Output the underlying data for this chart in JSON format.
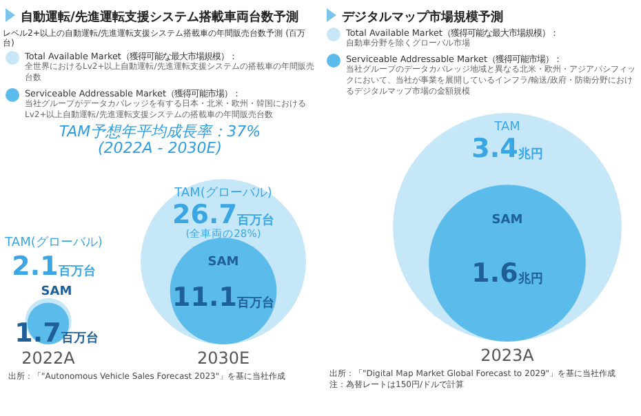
{
  "chart_data": [
    {
      "type": "other",
      "title": "自動運転/先進運転支援システム搭載車両台数予測",
      "subtitle": "レベル2+以上の自動運転/先進運転支援システム搭載車の年間販売台数予測 (百万台)",
      "categories": [
        "2022A",
        "2030E"
      ],
      "series": [
        {
          "name": "TAM(グローバル)",
          "color": "#c6e7f8",
          "values": [
            2.1,
            26.7
          ],
          "value_labels": [
            "2.1百万台",
            "26.7百万台"
          ]
        },
        {
          "name": "SAM",
          "color": "#5bbbeb",
          "values": [
            1.7,
            11.1
          ],
          "value_labels": [
            "1.7百万台",
            "11.1百万台"
          ]
        }
      ],
      "annotations": [
        "Total Available Market（獲得可能な最大市場規模）：",
        "全世界におけるLv2+以上自動運転/先進運転支援システムの搭載車の年間販売台数",
        "Serviceable Addressable Market（獲得可能市場）：",
        "当社グループがデータカバレッジを有する日本・北米・欧州・韓国におけるLv2+以上自動運転/先進運転支援システムの搭載車の年間販売台数",
        "TAM予想年平均成長率：37%\n(2022A - 2030E)",
        "出所：「\"Autonomous Vehicle Sales Forecast 2023\"」を基に当社作成",
        {
          "text": "(全車両の28%)",
          "x": "2030E"
        }
      ]
    },
    {
      "type": "other",
      "title": "デジタルマップ市場規模予測",
      "categories": [
        "2023A"
      ],
      "series": [
        {
          "name": "TAM",
          "color": "#c6e7f8",
          "values": [
            3.4
          ],
          "value_labels": [
            "3.4兆円"
          ]
        },
        {
          "name": "SAM",
          "color": "#5bbbeb",
          "values": [
            1.6
          ],
          "value_labels": [
            "1.6兆円"
          ]
        }
      ],
      "annotations": [
        "Total Available Market（獲得可能な最大市場規模）：",
        "自動車分野を除くグローバル市場",
        "Serviceable Addressable Market（獲得可能市場）：",
        "当社グループのデータカバレッジ地域と異なる北米・欧州・アジアパシフィックにおいて、当社が事業を展開しているインフラ/輸送/政府・防衛分野におけるデジタルマップ市場の金額規模",
        "出所：「\"Digital Map Market Global Forecast to 2029\"」を基に当社作成",
        "注：為替レートは150円/ドルで計算"
      ]
    }
  ]
}
